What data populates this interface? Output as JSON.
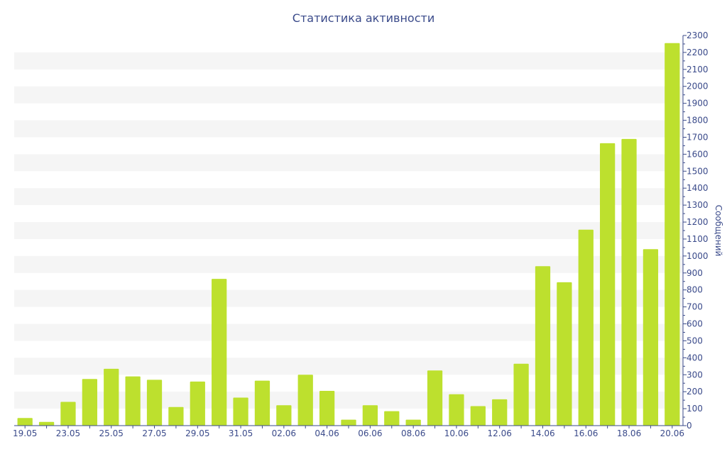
{
  "chart_data": {
    "type": "bar",
    "title": "Статистика активности",
    "ylabel": "Сообщений",
    "xlabel": "",
    "ylim": [
      0,
      2300
    ],
    "y_ticks": [
      0,
      100,
      200,
      300,
      400,
      500,
      600,
      700,
      800,
      900,
      1000,
      1100,
      1200,
      1300,
      1400,
      1500,
      1600,
      1700,
      1800,
      1900,
      2000,
      2100,
      2200,
      2300
    ],
    "y_axis_position": "right",
    "grid": "alternating horizontal bands",
    "categories": [
      "19.05",
      "20.05",
      "23.05",
      "24.05",
      "25.05",
      "26.05",
      "27.05",
      "28.05",
      "29.05",
      "30.05",
      "31.05",
      "01.06",
      "02.06",
      "03.06",
      "04.06",
      "05.06",
      "06.06",
      "07.06",
      "08.06",
      "09.06",
      "10.06",
      "11.06",
      "12.06",
      "13.06",
      "14.06",
      "15.06",
      "16.06",
      "17.06",
      "18.06",
      "19.06",
      "20.06"
    ],
    "x_tick_labels": [
      "19.05",
      "23.05",
      "25.05",
      "27.05",
      "29.05",
      "31.05",
      "02.06",
      "04.06",
      "06.06",
      "08.06",
      "10.06",
      "12.06",
      "14.06",
      "16.06",
      "18.06",
      "20.06"
    ],
    "values": [
      45,
      22,
      140,
      275,
      335,
      290,
      270,
      110,
      260,
      865,
      165,
      265,
      120,
      300,
      205,
      35,
      120,
      85,
      35,
      325,
      185,
      115,
      155,
      365,
      940,
      845,
      1155,
      1665,
      1690,
      1040,
      2255
    ]
  },
  "colors": {
    "bar": "#bde02e",
    "band": "#f5f5f5",
    "axis": "#3a4a8a",
    "text": "#3a4a8a"
  }
}
